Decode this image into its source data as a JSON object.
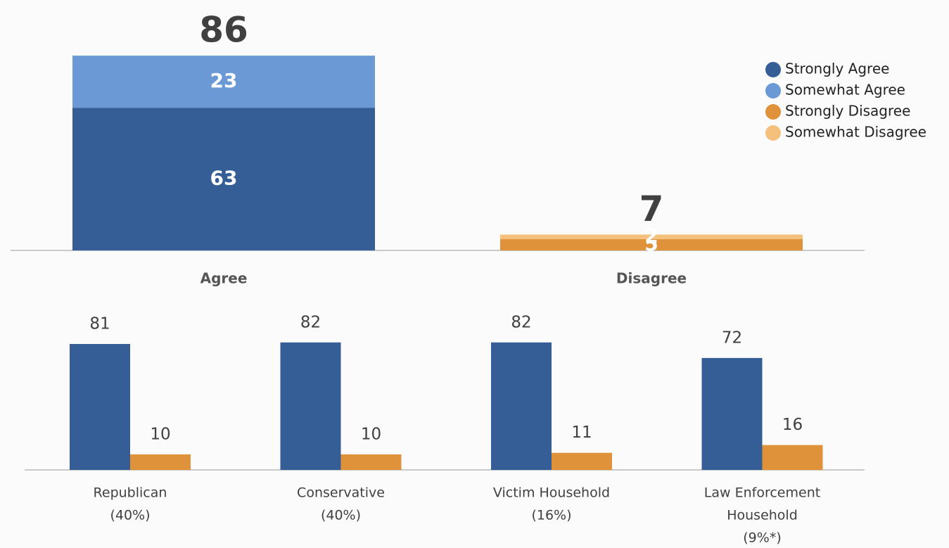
{
  "chart_data": [
    {
      "type": "stacked-bar",
      "categories": [
        "Agree",
        "Disagree"
      ],
      "totals": [
        86,
        7
      ],
      "series": [
        {
          "name": "Strongly Agree",
          "color": "#355e96",
          "values": [
            63,
            null
          ]
        },
        {
          "name": "Somewhat Agree",
          "color": "#6a99d6",
          "values": [
            23,
            null
          ]
        },
        {
          "name": "Strongly Disagree",
          "color": "#e0923a",
          "values": [
            null,
            5
          ]
        },
        {
          "name": "Somewhat Disagree",
          "color": "#f5c07c",
          "values": [
            null,
            2
          ]
        }
      ],
      "ylim": [
        0,
        100
      ],
      "legend": "top-right"
    },
    {
      "type": "grouped-bar",
      "categories": [
        [
          "Republican",
          "(40%)"
        ],
        [
          "Conservative",
          "(40%)"
        ],
        [
          "Victim Household",
          "(16%)"
        ],
        [
          "Law Enforcement",
          "Household",
          "(9%*)"
        ]
      ],
      "series": [
        {
          "color": "#355e96",
          "values": [
            81,
            82,
            82,
            72
          ]
        },
        {
          "color": "#e0923a",
          "values": [
            10,
            10,
            11,
            16
          ]
        }
      ],
      "ylim": [
        0,
        100
      ]
    }
  ]
}
